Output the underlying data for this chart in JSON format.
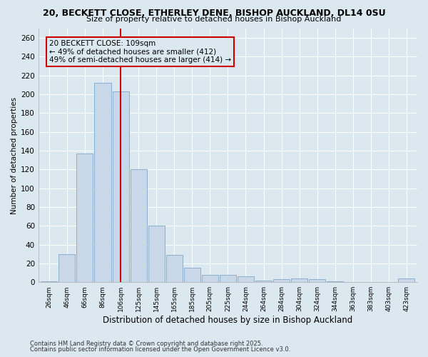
{
  "title": "20, BECKETT CLOSE, ETHERLEY DENE, BISHOP AUCKLAND, DL14 0SU",
  "subtitle": "Size of property relative to detached houses in Bishop Auckland",
  "xlabel": "Distribution of detached houses by size in Bishop Auckland",
  "ylabel": "Number of detached properties",
  "footnote1": "Contains HM Land Registry data © Crown copyright and database right 2025.",
  "footnote2": "Contains public sector information licensed under the Open Government Licence v3.0.",
  "annotation_title": "20 BECKETT CLOSE: 109sqm",
  "annotation_line1": "← 49% of detached houses are smaller (412)",
  "annotation_line2": "49% of semi-detached houses are larger (414) →",
  "bar_color": "#c8d8e8",
  "bar_edge_color": "#7fa8c8",
  "vline_color": "#cc0000",
  "annotation_box_edge_color": "#cc0000",
  "bg_color": "#dce8f0",
  "categories": [
    "26sqm",
    "46sqm",
    "66sqm",
    "86sqm",
    "106sqm",
    "125sqm",
    "145sqm",
    "165sqm",
    "185sqm",
    "205sqm",
    "225sqm",
    "244sqm",
    "264sqm",
    "284sqm",
    "304sqm",
    "324sqm",
    "344sqm",
    "363sqm",
    "383sqm",
    "403sqm",
    "423sqm"
  ],
  "values": [
    1,
    30,
    137,
    212,
    203,
    120,
    60,
    29,
    15,
    8,
    8,
    6,
    2,
    3,
    4,
    3,
    1,
    0,
    0,
    0,
    4
  ],
  "ylim": [
    0,
    270
  ],
  "yticks": [
    0,
    20,
    40,
    60,
    80,
    100,
    120,
    140,
    160,
    180,
    200,
    220,
    240,
    260
  ],
  "vline_x_index": 4.0
}
